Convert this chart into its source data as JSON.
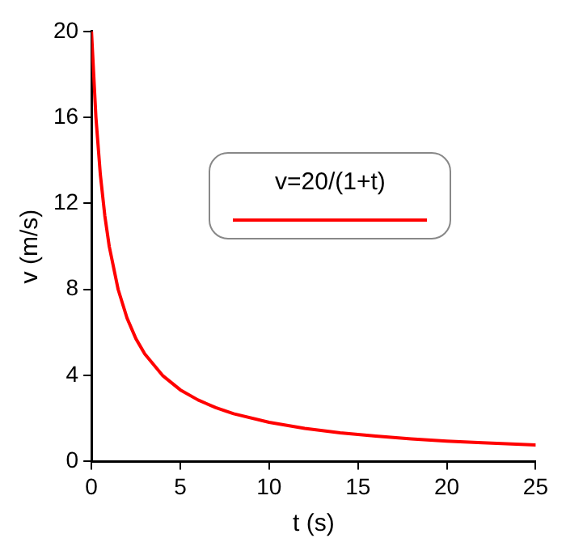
{
  "chart_data": {
    "type": "line",
    "xlabel": "t (s)",
    "ylabel": "v (m/s)",
    "x": [
      0,
      0.25,
      0.5,
      0.75,
      1,
      1.5,
      2,
      2.5,
      3,
      4,
      5,
      6,
      7,
      8,
      10,
      12,
      14,
      16,
      18,
      20,
      22,
      25
    ],
    "series": [
      {
        "name": "v=20/(1+t)",
        "color": "#ff0000",
        "values": [
          20,
          16,
          13.33,
          11.43,
          10,
          8,
          6.67,
          5.71,
          5,
          4,
          3.33,
          2.86,
          2.5,
          2.22,
          1.82,
          1.54,
          1.33,
          1.18,
          1.05,
          0.95,
          0.87,
          0.77
        ]
      }
    ],
    "xlim": [
      0,
      25
    ],
    "xticks": [
      0,
      5,
      10,
      15,
      20,
      25
    ],
    "ylim": [
      0,
      20
    ],
    "yticks": [
      0,
      4,
      8,
      12,
      16,
      20
    ],
    "grid": false,
    "legend": "top right",
    "marker": "none",
    "line_style": "solid"
  }
}
